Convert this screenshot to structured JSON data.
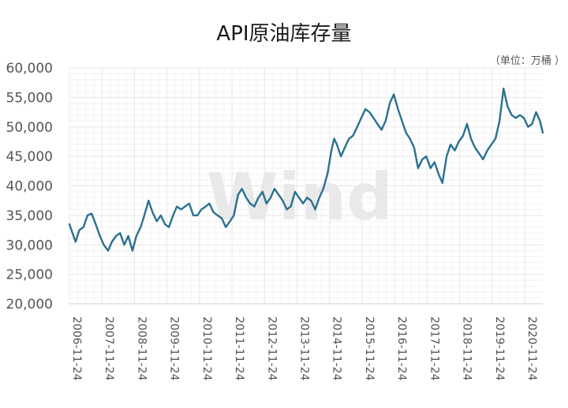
{
  "chart_data": {
    "type": "line",
    "title": "API原油库存量",
    "unit_note": "（单位：万桶 ）",
    "watermark": "Wind",
    "ylim": [
      20000,
      60000
    ],
    "yticks": [
      "60,000",
      "55,000",
      "50,000",
      "45,000",
      "40,000",
      "35,000",
      "30,000",
      "25,000",
      "20,000"
    ],
    "ytick_values": [
      60000,
      55000,
      50000,
      45000,
      40000,
      35000,
      30000,
      25000,
      20000
    ],
    "xticks": [
      "2006-11-24",
      "2007-11-24",
      "2008-11-24",
      "2009-11-24",
      "2010-11-24",
      "2011-11-24",
      "2012-11-24",
      "2013-11-24",
      "2014-11-24",
      "2015-11-24",
      "2016-11-24",
      "2017-11-24",
      "2018-11-24",
      "2019-11-24",
      "2020-11-24"
    ],
    "grid": true,
    "line_color": "#2a7190",
    "series": [
      {
        "x": [
          "2006-11-24",
          "2007-02-01",
          "2007-03-15",
          "2007-05-01",
          "2007-06-15",
          "2007-08-01",
          "2007-09-15",
          "2007-11-01",
          "2007-12-15",
          "2008-02-01",
          "2008-03-15",
          "2008-05-01",
          "2008-06-15",
          "2008-08-01",
          "2008-09-15",
          "2008-11-01",
          "2008-12-15",
          "2009-02-01",
          "2009-03-15",
          "2009-05-01",
          "2009-06-15",
          "2009-08-01",
          "2009-09-15",
          "2009-11-01",
          "2009-12-15",
          "2010-02-01",
          "2010-03-15",
          "2010-05-01",
          "2010-06-15",
          "2010-08-01",
          "2010-09-15",
          "2010-11-01",
          "2010-12-15",
          "2011-02-01",
          "2011-03-15",
          "2011-05-01",
          "2011-06-15",
          "2011-08-01",
          "2011-09-15",
          "2011-11-01",
          "2011-12-15",
          "2012-02-01",
          "2012-03-15",
          "2012-05-01",
          "2012-06-15",
          "2012-08-01",
          "2012-09-15",
          "2012-11-01",
          "2012-12-15",
          "2013-02-01",
          "2013-03-15",
          "2013-05-01",
          "2013-06-15",
          "2013-08-01",
          "2013-09-15",
          "2013-11-01",
          "2013-12-15",
          "2014-02-01",
          "2014-03-15",
          "2014-05-01",
          "2014-06-15",
          "2014-08-01",
          "2014-09-15",
          "2014-11-01",
          "2014-12-15",
          "2015-01-15",
          "2015-02-15",
          "2015-04-01",
          "2015-05-15",
          "2015-07-01",
          "2015-08-15",
          "2015-10-01",
          "2015-11-15",
          "2016-01-01",
          "2016-02-15",
          "2016-04-01",
          "2016-05-15",
          "2016-07-01",
          "2016-08-15",
          "2016-10-01",
          "2016-11-15",
          "2017-01-01",
          "2017-02-15",
          "2017-04-01",
          "2017-05-15",
          "2017-07-01",
          "2017-08-15",
          "2017-10-01",
          "2017-11-15",
          "2018-01-01",
          "2018-02-15",
          "2018-04-01",
          "2018-05-15",
          "2018-07-01",
          "2018-08-15",
          "2018-10-01",
          "2018-11-15",
          "2019-01-01",
          "2019-02-15",
          "2019-04-01",
          "2019-05-15",
          "2019-07-01",
          "2019-08-15",
          "2019-10-01",
          "2019-11-15",
          "2020-01-01",
          "2020-02-15",
          "2020-04-01",
          "2020-05-15",
          "2020-07-01",
          "2020-08-15",
          "2020-10-01",
          "2020-11-15",
          "2021-01-01",
          "2021-02-15",
          "2021-04-01",
          "2021-05-15",
          "2021-06-15"
        ],
        "values": [
          33500,
          30500,
          32500,
          33000,
          35000,
          35300,
          33500,
          31500,
          30000,
          29000,
          30500,
          31500,
          32000,
          30000,
          31500,
          29000,
          31500,
          33000,
          35000,
          37500,
          35500,
          34000,
          35000,
          33500,
          33000,
          35000,
          36500,
          36000,
          36500,
          37000,
          35000,
          35000,
          36000,
          36500,
          37000,
          35500,
          35000,
          34500,
          33000,
          34000,
          35000,
          38500,
          39500,
          38000,
          37000,
          36500,
          38000,
          39000,
          37000,
          38000,
          39500,
          38500,
          37500,
          36000,
          36500,
          39000,
          38000,
          37000,
          38000,
          37500,
          36000,
          38000,
          39500,
          42000,
          46000,
          48000,
          47000,
          45000,
          46500,
          48000,
          48500,
          50000,
          51500,
          53000,
          52500,
          51500,
          50500,
          49500,
          51000,
          54000,
          55500,
          53000,
          51000,
          49000,
          48000,
          46500,
          43000,
          44500,
          45000,
          43000,
          44000,
          42000,
          40500,
          45000,
          47000,
          46000,
          47500,
          48500,
          50500,
          48000,
          46500,
          45500,
          44500,
          46000,
          47000,
          48000,
          51000,
          56500,
          53500,
          52000,
          51500,
          52000,
          51500,
          50000,
          50500,
          52500,
          51000,
          49000
        ]
      }
    ]
  }
}
